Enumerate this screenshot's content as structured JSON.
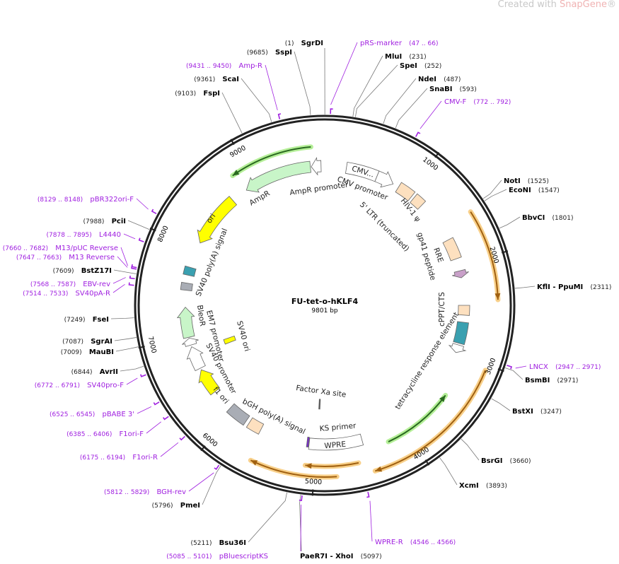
{
  "watermark": {
    "prefix": "Created with ",
    "brand": "SnapGene",
    "mark": "®"
  },
  "plasmid": {
    "name": "FU-tet-o-hKLF4",
    "length_label": "9801 bp",
    "length": 9801
  },
  "ticks": [
    "1000",
    "2000",
    "3000",
    "4000",
    "5000",
    "6000",
    "7000",
    "8000",
    "9000"
  ],
  "colors": {
    "primer": "#a020e0",
    "orf_orange": "#f5c77a",
    "orf_green": "#a8e890",
    "backbone": "#222222"
  },
  "sites": [
    {
      "name": "SgrDI",
      "pos": "1"
    },
    {
      "name": "SspI",
      "pos": "9685"
    },
    {
      "name": "ScaI",
      "pos": "9361"
    },
    {
      "name": "FspI",
      "pos": "9103"
    },
    {
      "name": "MluI",
      "pos": "231"
    },
    {
      "name": "SpeI",
      "pos": "252"
    },
    {
      "name": "NdeI",
      "pos": "487"
    },
    {
      "name": "SnaBI",
      "pos": "593"
    },
    {
      "name": "NotI",
      "pos": "1525"
    },
    {
      "name": "EcoNI",
      "pos": "1547"
    },
    {
      "name": "BbvCI",
      "pos": "1801"
    },
    {
      "name": "KflI - PpuMI",
      "pos": "2311"
    },
    {
      "name": "BsmBI",
      "pos": "2971"
    },
    {
      "name": "BstXI",
      "pos": "3247"
    },
    {
      "name": "BsrGI",
      "pos": "3660"
    },
    {
      "name": "XcmI",
      "pos": "3893"
    },
    {
      "name": "PaeR7I - XhoI",
      "pos": "5097"
    },
    {
      "name": "Bsu36I",
      "pos": "5211"
    },
    {
      "name": "PmeI",
      "pos": "5796"
    },
    {
      "name": "AvrII",
      "pos": "6844"
    },
    {
      "name": "MauBI",
      "pos": "7009"
    },
    {
      "name": "SgrAI",
      "pos": "7087"
    },
    {
      "name": "FseI",
      "pos": "7249"
    },
    {
      "name": "BstZ17I",
      "pos": "7609"
    },
    {
      "name": "PciI",
      "pos": "7988"
    }
  ],
  "primers": [
    {
      "name": "pRS-marker",
      "range": "47 .. 66",
      "start": 47
    },
    {
      "name": "CMV-F",
      "range": "772 .. 792",
      "start": 772
    },
    {
      "name": "LNCX",
      "range": "2947 .. 2971",
      "start": 2947
    },
    {
      "name": "WPRE-R",
      "range": "4546 .. 4566",
      "start": 4546
    },
    {
      "name": "pBluescriptKS",
      "range": "5085 .. 5101",
      "start": 5085
    },
    {
      "name": "BGH-rev",
      "range": "5812 .. 5829",
      "start": 5812
    },
    {
      "name": "F1ori-R",
      "range": "6175 .. 6194",
      "start": 6175
    },
    {
      "name": "F1ori-F",
      "range": "6385 .. 6406",
      "start": 6385
    },
    {
      "name": "pBABE 3'",
      "range": "6525 .. 6545",
      "start": 6525
    },
    {
      "name": "SV40pro-F",
      "range": "6772 .. 6791",
      "start": 6772
    },
    {
      "name": "SV40pA-R",
      "range": "7514 .. 7533",
      "start": 7514
    },
    {
      "name": "EBV-rev",
      "range": "7568 .. 7587",
      "start": 7568
    },
    {
      "name": "M13 Reverse",
      "range": "7647 .. 7663",
      "start": 7647
    },
    {
      "name": "M13/pUC Reverse",
      "range": "7660 .. 7682",
      "start": 7660
    },
    {
      "name": "L4440",
      "range": "7878 .. 7895",
      "start": 7878
    },
    {
      "name": "pBR322ori-F",
      "range": "8129 .. 8148",
      "start": 8129
    },
    {
      "name": "Amp-R",
      "range": "9431 .. 9450",
      "start": 9431
    }
  ],
  "features": [
    {
      "label": "CMV...",
      "start": 244,
      "end": 600,
      "dir": "none",
      "color": "#ffffff"
    },
    {
      "label": "CMV promoter",
      "start": 600,
      "end": 800,
      "dir": "cw",
      "color": "#ffffff"
    },
    {
      "label": "5' LTR (truncated)",
      "start": 870,
      "end": 1050,
      "dir": "none",
      "color": "#fde0bf"
    },
    {
      "label": "HIV-1 ψ",
      "start": 1080,
      "end": 1200,
      "dir": "none",
      "color": "#fde0bf"
    },
    {
      "label": "RRE",
      "start": 1690,
      "end": 1920,
      "dir": "none",
      "color": "#fde0bf"
    },
    {
      "label": "gp41 peptide",
      "start": 2060,
      "end": 2140,
      "dir": "cw",
      "color": "#c9a0c9"
    },
    {
      "label": "cPPT/CTS",
      "start": 2450,
      "end": 2560,
      "dir": "none",
      "color": "#fde0bf"
    },
    {
      "label": "tetracycline response element",
      "start": 2640,
      "end": 2880,
      "dir": "none",
      "color": "#3aa0b0"
    },
    {
      "label": "",
      "start": 2900,
      "end": 2990,
      "dir": "cw",
      "color": "#ffffff"
    },
    {
      "label": "WPRE",
      "start": 4480,
      "end": 5075,
      "dir": "none",
      "color": "#ffffff"
    },
    {
      "label": "KS primer",
      "start": 5080,
      "end": 5101,
      "dir": "none",
      "color": "#7a2ad0"
    },
    {
      "label": "Factor Xa site",
      "start": 4972,
      "end": 4990,
      "dir": "none",
      "color": "#555555"
    },
    {
      "label": "bGH poly(A) signal",
      "start": 5640,
      "end": 5790,
      "dir": "none",
      "color": "#fde0bf"
    },
    {
      "label": "",
      "start": 5830,
      "end": 6060,
      "dir": "none",
      "color": "#a9adb5"
    },
    {
      "label": "f1 ori",
      "start": 6310,
      "end": 6600,
      "dir": "cw",
      "color": "#ffff00"
    },
    {
      "label": "SV40 promoter",
      "start": 6620,
      "end": 6880,
      "dir": "cw",
      "color": "#ffffff"
    },
    {
      "label": "SV40 ori",
      "start": 6770,
      "end": 6840,
      "dir": "none",
      "color": "#ffff00"
    },
    {
      "label": "EM7 promoter",
      "start": 6900,
      "end": 6980,
      "dir": "cw",
      "color": "#ffffff"
    },
    {
      "label": "BleoR",
      "start": 6990,
      "end": 7330,
      "dir": "cw",
      "color": "#c8f5c8"
    },
    {
      "label": "SV40 poly(A) signal",
      "start": 7520,
      "end": 7600,
      "dir": "none",
      "color": "#a9adb5"
    },
    {
      "label": "",
      "start": 7690,
      "end": 7780,
      "dir": "none",
      "color": "#3aa0b0"
    },
    {
      "label": "ori",
      "start": 8075,
      "end": 8680,
      "dir": "ccw",
      "color": "#ffff00"
    },
    {
      "label": "AmpR",
      "start": 8870,
      "end": 9640,
      "dir": "ccw",
      "color": "#c8f5c8"
    },
    {
      "label": "AmpR promoter",
      "start": 9650,
      "end": 9760,
      "dir": "ccw",
      "color": "#ffffff"
    }
  ],
  "orfs": [
    {
      "start": 1560,
      "end": 2400,
      "dir": "cw",
      "color": "orange"
    },
    {
      "start": 3050,
      "end": 4440,
      "dir": "cw",
      "color": "orange"
    },
    {
      "start": 4570,
      "end": 5090,
      "dir": "cw",
      "color": "orange"
    },
    {
      "start": 4790,
      "end": 5595,
      "dir": "cw",
      "color": "orange"
    },
    {
      "start": 3450,
      "end": 4220,
      "dir": "ccw",
      "color": "green"
    },
    {
      "start": 8838,
      "end": 9665,
      "dir": "ccw",
      "color": "green"
    }
  ]
}
